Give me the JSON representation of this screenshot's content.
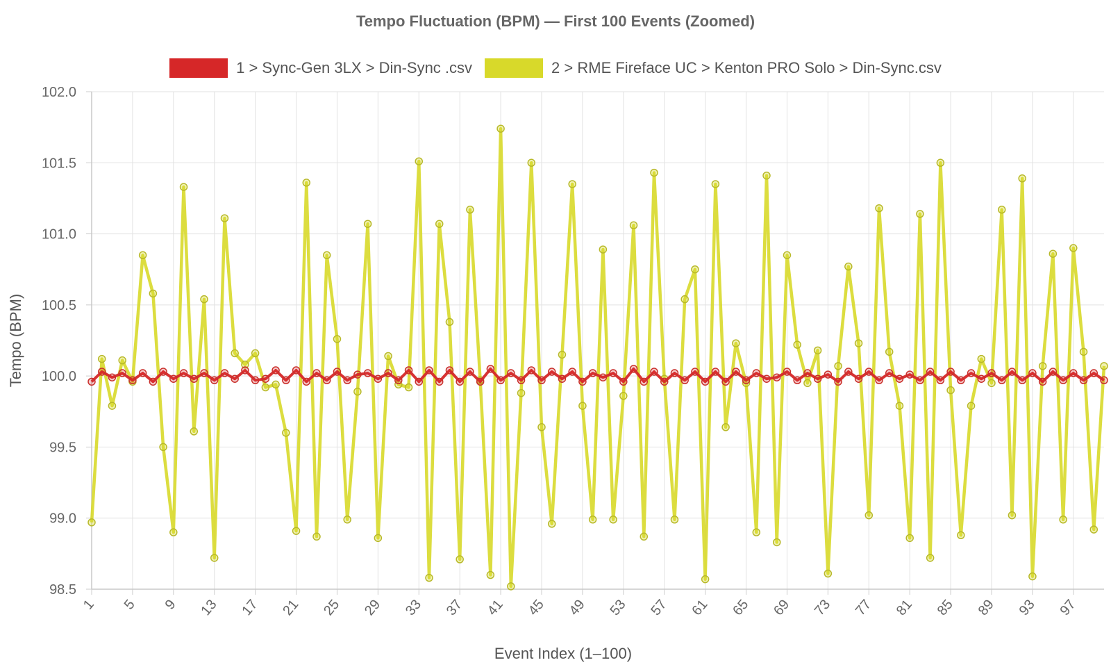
{
  "chart_data": {
    "type": "line",
    "title": "Tempo Fluctuation (BPM) — First 100 Events (Zoomed)",
    "xlabel": "Event Index (1–100)",
    "ylabel": "Tempo (BPM)",
    "ylim": [
      98.5,
      102.0
    ],
    "yticks": [
      "102.0",
      "101.5",
      "101.0",
      "100.5",
      "100.0",
      "99.5",
      "99.0",
      "98.5"
    ],
    "xticks": [
      1,
      5,
      9,
      13,
      17,
      21,
      25,
      29,
      33,
      37,
      41,
      45,
      49,
      53,
      57,
      61,
      65,
      69,
      73,
      77,
      81,
      85,
      89,
      93,
      97
    ],
    "x_range": [
      1,
      100
    ],
    "grid": true,
    "legend_position": "top-center",
    "series": [
      {
        "name": "1 > Sync-Gen 3LX > Din-Sync .csv",
        "color": "#d62728",
        "values": [
          99.96,
          100.03,
          99.99,
          100.02,
          99.97,
          100.02,
          99.96,
          100.03,
          99.98,
          100.02,
          99.98,
          100.02,
          99.97,
          100.02,
          99.98,
          100.04,
          99.97,
          99.98,
          100.04,
          99.97,
          100.04,
          99.96,
          100.02,
          99.97,
          100.03,
          99.97,
          100.01,
          100.02,
          99.98,
          100.02,
          99.97,
          100.04,
          99.96,
          100.04,
          99.96,
          100.04,
          99.96,
          100.03,
          99.96,
          100.05,
          99.97,
          100.02,
          99.97,
          100.04,
          99.97,
          100.03,
          99.98,
          100.03,
          99.96,
          100.02,
          99.99,
          100.02,
          99.96,
          100.05,
          99.96,
          100.03,
          99.96,
          100.02,
          99.97,
          100.03,
          99.96,
          100.03,
          99.96,
          100.03,
          99.97,
          100.02,
          99.98,
          99.99,
          100.03,
          99.97,
          100.02,
          99.98,
          100.01,
          99.96,
          100.03,
          99.98,
          100.03,
          99.97,
          100.02,
          99.98,
          100.01,
          99.97,
          100.03,
          99.97,
          100.03,
          99.97,
          100.02,
          99.98,
          100.02,
          99.97,
          100.03,
          99.97,
          100.02,
          99.96,
          100.03,
          99.97,
          100.02,
          99.97,
          100.02,
          99.97
        ]
      },
      {
        "name": "2 > RME Fireface UC > Kenton PRO Solo > Din-Sync.csv",
        "color": "#d8d92a",
        "values": [
          98.97,
          100.12,
          99.79,
          100.11,
          99.96,
          100.85,
          100.58,
          99.5,
          98.9,
          101.33,
          99.61,
          100.54,
          98.72,
          101.11,
          100.16,
          100.08,
          100.16,
          99.92,
          99.94,
          99.6,
          98.91,
          101.36,
          98.87,
          100.85,
          100.26,
          98.99,
          99.89,
          101.07,
          98.86,
          100.14,
          99.94,
          99.92,
          101.51,
          98.58,
          101.07,
          100.38,
          98.71,
          101.17,
          99.97,
          98.6,
          101.74,
          98.52,
          99.88,
          101.5,
          99.64,
          98.96,
          100.15,
          101.35,
          99.79,
          98.99,
          100.89,
          98.99,
          99.86,
          101.06,
          98.87,
          101.43,
          99.98,
          98.99,
          100.54,
          100.75,
          98.57,
          101.35,
          99.64,
          100.23,
          99.95,
          98.9,
          101.41,
          98.83,
          100.85,
          100.22,
          99.95,
          100.18,
          98.61,
          100.07,
          100.77,
          100.23,
          99.02,
          101.18,
          100.17,
          99.79,
          98.86,
          101.14,
          98.72,
          101.5,
          99.9,
          98.88,
          99.79,
          100.12,
          99.95,
          101.17,
          99.02,
          101.39,
          98.59,
          100.07,
          100.86,
          98.99,
          100.9,
          100.17,
          98.92,
          100.07
        ]
      }
    ]
  }
}
